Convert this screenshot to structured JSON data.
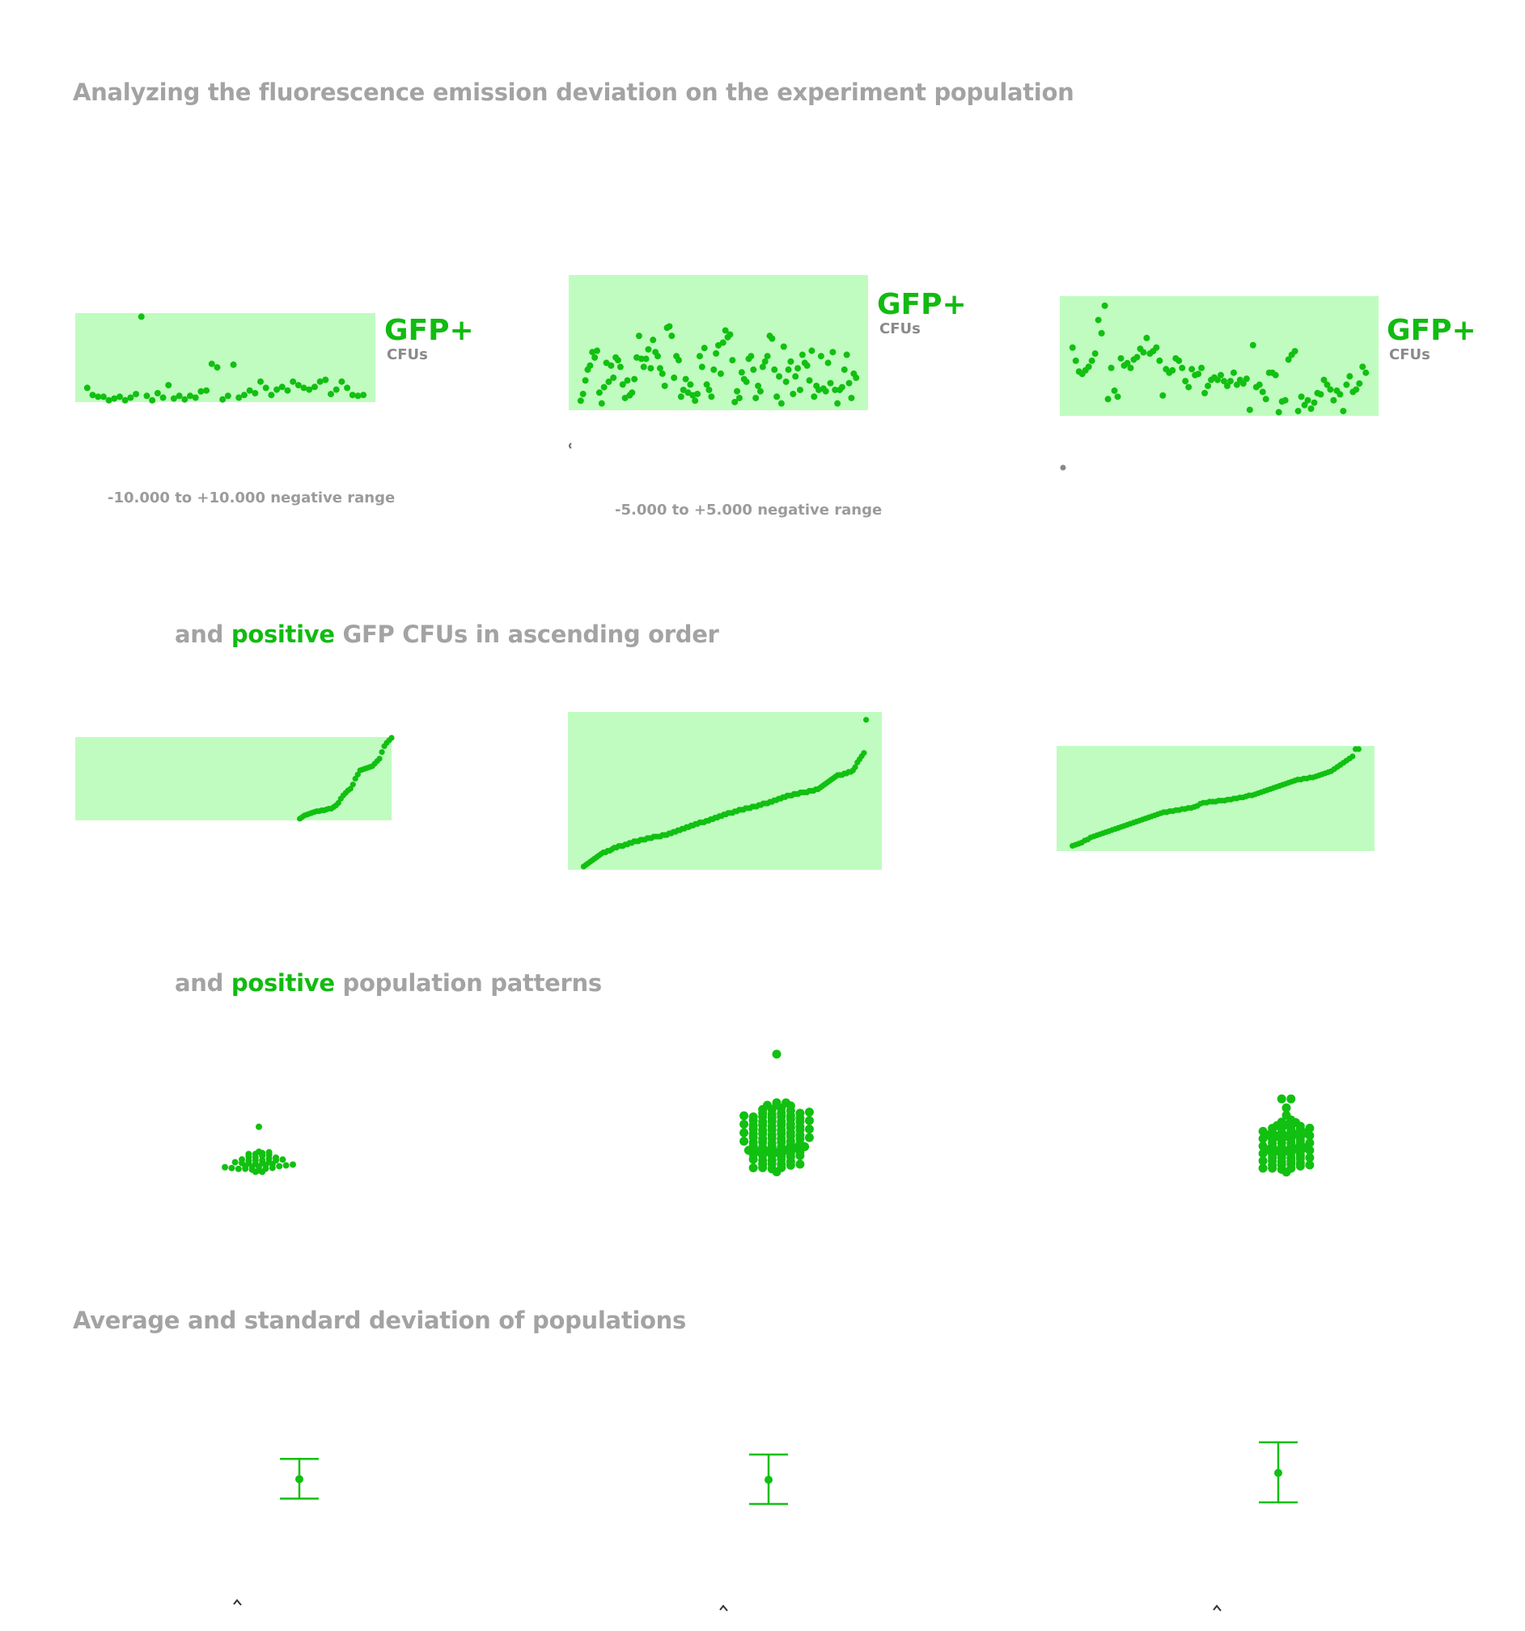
{
  "headings": {
    "h1": "Analyzing the fluorescence emission deviation on the experiment population",
    "h2_pre": "and ",
    "h2_hl": "positive",
    "h2_post": " GFP CFUs in ascending order",
    "h3_pre": "and ",
    "h3_hl": "positive",
    "h3_post": " population patterns",
    "h4": "Average and standard deviation of populations"
  },
  "captions": {
    "c1": "-10.000 to +10.000 negative range",
    "c2": "-5.000 to +5.000 negative range"
  },
  "colors": {
    "point": "#11c011",
    "panel": "#c0fcc0",
    "heading": "#a3a3a3",
    "highlight": "#11bb11",
    "caption_gray": "#9b9b9b"
  },
  "chart_data": [
    {
      "type": "scatter",
      "row": "deviation",
      "panel": 1,
      "label_main": "GFP+",
      "label_sub": "CFUs",
      "ylim": [
        0,
        1
      ],
      "values": [
        0.16,
        0.08,
        0.06,
        0.06,
        0.02,
        0.04,
        0.06,
        0.02,
        0.05,
        0.09,
        0.96,
        0.07,
        0.02,
        0.1,
        0.05,
        0.19,
        0.04,
        0.07,
        0.03,
        0.07,
        0.05,
        0.12,
        0.13,
        0.43,
        0.39,
        0.03,
        0.07,
        0.42,
        0.05,
        0.08,
        0.13,
        0.1,
        0.23,
        0.16,
        0.08,
        0.14,
        0.17,
        0.13,
        0.23,
        0.19,
        0.16,
        0.14,
        0.17,
        0.23,
        0.25,
        0.09,
        0.14,
        0.23,
        0.16,
        0.08,
        0.07,
        0.08
      ]
    },
    {
      "type": "scatter",
      "row": "deviation",
      "panel": 2,
      "label_main": "GFP+",
      "label_sub": "CFUs",
      "ylim": [
        0,
        1
      ],
      "values": [
        0.07,
        0.12,
        0.22,
        0.3,
        0.33,
        0.43,
        0.39,
        0.44,
        0.13,
        0.05,
        0.17,
        0.35,
        0.21,
        0.33,
        0.24,
        0.39,
        0.37,
        0.32,
        0.19,
        0.09,
        0.22,
        0.11,
        0.13,
        0.23,
        0.39,
        0.55,
        0.38,
        0.32,
        0.38,
        0.45,
        0.31,
        0.52,
        0.43,
        0.4,
        0.31,
        0.27,
        0.18,
        0.61,
        0.62,
        0.55,
        0.24,
        0.4,
        0.37,
        0.1,
        0.15,
        0.23,
        0.13,
        0.19,
        0.11,
        0.07,
        0.12,
        0.4,
        0.32,
        0.46,
        0.19,
        0.15,
        0.1,
        0.3,
        0.42,
        0.48,
        0.27,
        0.5,
        0.59,
        0.54,
        0.56,
        0.37,
        0.06,
        0.14,
        0.09,
        0.28,
        0.23,
        0.21,
        0.38,
        0.4,
        0.3,
        0.09,
        0.18,
        0.14,
        0.32,
        0.36,
        0.4,
        0.55,
        0.53,
        0.3,
        0.1,
        0.25,
        0.05,
        0.47,
        0.21,
        0.3,
        0.36,
        0.12,
        0.25,
        0.31,
        0.15,
        0.41,
        0.35,
        0.33,
        0.22,
        0.44,
        0.1,
        0.18,
        0.15,
        0.4,
        0.16,
        0.14,
        0.35,
        0.2,
        0.43,
        0.15,
        0.05,
        0.15,
        0.17,
        0.3,
        0.41,
        0.2,
        0.09,
        0.27,
        0.24
      ]
    },
    {
      "type": "scatter",
      "row": "deviation",
      "panel": 3,
      "label_main": "GFP+",
      "label_sub": "CFUs",
      "ylim": [
        0,
        1
      ],
      "values": [
        0.57,
        0.46,
        0.37,
        0.35,
        0.38,
        0.41,
        0.46,
        0.52,
        0.8,
        0.69,
        0.92,
        0.14,
        0.4,
        0.21,
        0.16,
        0.48,
        0.42,
        0.44,
        0.4,
        0.47,
        0.49,
        0.56,
        0.53,
        0.65,
        0.52,
        0.54,
        0.57,
        0.46,
        0.17,
        0.39,
        0.36,
        0.38,
        0.48,
        0.46,
        0.4,
        0.29,
        0.24,
        0.39,
        0.34,
        0.35,
        0.4,
        0.19,
        0.25,
        0.3,
        0.32,
        0.3,
        0.34,
        0.29,
        0.25,
        0.29,
        0.36,
        0.26,
        0.3,
        0.27,
        0.31,
        0.05,
        0.59,
        0.24,
        0.26,
        0.2,
        0.14,
        0.36,
        0.36,
        0.34,
        0.03,
        0.12,
        0.13,
        0.47,
        0.51,
        0.54,
        0.04,
        0.16,
        0.09,
        0.13,
        0.06,
        0.11,
        0.19,
        0.18,
        0.3,
        0.26,
        0.22,
        0.13,
        0.21,
        0.18,
        0.04,
        0.26,
        0.33,
        0.2,
        0.22,
        0.27,
        0.41,
        0.36
      ]
    },
    {
      "type": "scatter",
      "row": "ascending",
      "panel": 1,
      "ylim": [
        0,
        1
      ],
      "values": [
        0.02,
        0.04,
        0.06,
        0.07,
        0.08,
        0.09,
        0.1,
        0.11,
        0.11,
        0.12,
        0.12,
        0.13,
        0.14,
        0.14,
        0.16,
        0.18,
        0.21,
        0.26,
        0.3,
        0.33,
        0.36,
        0.38,
        0.43,
        0.5,
        0.55,
        0.6,
        0.61,
        0.62,
        0.63,
        0.64,
        0.65,
        0.68,
        0.71,
        0.74,
        0.82,
        0.89,
        0.93,
        0.96,
        0.99
      ]
    },
    {
      "type": "scatter",
      "row": "ascending",
      "panel": 2,
      "ylim": [
        0,
        1
      ],
      "values": [
        0.02,
        0.03,
        0.04,
        0.05,
        0.06,
        0.07,
        0.08,
        0.09,
        0.1,
        0.11,
        0.11,
        0.12,
        0.12,
        0.13,
        0.14,
        0.14,
        0.15,
        0.15,
        0.15,
        0.16,
        0.16,
        0.17,
        0.17,
        0.18,
        0.18,
        0.18,
        0.19,
        0.19,
        0.19,
        0.2,
        0.2,
        0.2,
        0.21,
        0.21,
        0.21,
        0.21,
        0.22,
        0.22,
        0.22,
        0.23,
        0.23,
        0.24,
        0.24,
        0.25,
        0.25,
        0.26,
        0.26,
        0.27,
        0.27,
        0.28,
        0.28,
        0.29,
        0.29,
        0.3,
        0.3,
        0.3,
        0.31,
        0.31,
        0.32,
        0.32,
        0.33,
        0.33,
        0.34,
        0.34,
        0.35,
        0.35,
        0.36,
        0.36,
        0.36,
        0.37,
        0.37,
        0.38,
        0.38,
        0.38,
        0.39,
        0.39,
        0.39,
        0.4,
        0.4,
        0.4,
        0.41,
        0.41,
        0.42,
        0.42,
        0.42,
        0.43,
        0.43,
        0.44,
        0.44,
        0.45,
        0.45,
        0.46,
        0.46,
        0.47,
        0.47,
        0.47,
        0.48,
        0.48,
        0.48,
        0.49,
        0.49,
        0.49,
        0.49,
        0.5,
        0.5,
        0.5,
        0.51,
        0.51,
        0.52,
        0.53,
        0.54,
        0.55,
        0.56,
        0.57,
        0.58,
        0.59,
        0.6,
        0.6,
        0.6,
        0.61,
        0.61,
        0.62,
        0.62,
        0.63,
        0.65,
        0.68,
        0.7,
        0.72,
        0.74,
        0.95
      ]
    },
    {
      "type": "scatter",
      "row": "ascending",
      "panel": 3,
      "ylim": [
        0,
        1
      ],
      "values": [
        0.05,
        0.06,
        0.07,
        0.08,
        0.1,
        0.11,
        0.13,
        0.14,
        0.15,
        0.16,
        0.17,
        0.18,
        0.19,
        0.2,
        0.21,
        0.22,
        0.23,
        0.24,
        0.25,
        0.26,
        0.27,
        0.28,
        0.29,
        0.3,
        0.31,
        0.32,
        0.33,
        0.34,
        0.35,
        0.36,
        0.37,
        0.37,
        0.38,
        0.38,
        0.39,
        0.39,
        0.4,
        0.4,
        0.41,
        0.41,
        0.42,
        0.43,
        0.45,
        0.46,
        0.46,
        0.47,
        0.47,
        0.47,
        0.48,
        0.48,
        0.48,
        0.49,
        0.49,
        0.5,
        0.5,
        0.51,
        0.51,
        0.52,
        0.53,
        0.53,
        0.54,
        0.55,
        0.56,
        0.57,
        0.58,
        0.59,
        0.6,
        0.61,
        0.62,
        0.63,
        0.64,
        0.65,
        0.66,
        0.67,
        0.68,
        0.68,
        0.69,
        0.69,
        0.7,
        0.7,
        0.71,
        0.72,
        0.73,
        0.74,
        0.75,
        0.76,
        0.78,
        0.8,
        0.82,
        0.84,
        0.86,
        0.88,
        0.9,
        0.97,
        0.97
      ]
    },
    {
      "type": "scatter",
      "row": "pattern",
      "panel": 1,
      "subtype": "beeswarm",
      "ylim": [
        0,
        1
      ],
      "values": [
        0.01,
        0.01,
        0.02,
        0.02,
        0.02,
        0.03,
        0.03,
        0.03,
        0.04,
        0.04,
        0.05,
        0.05,
        0.05,
        0.06,
        0.06,
        0.07,
        0.08,
        0.08,
        0.09,
        0.09,
        0.1,
        0.1,
        0.11,
        0.11,
        0.12,
        0.12,
        0.13,
        0.13,
        0.14,
        0.14,
        0.15,
        0.15,
        0.17,
        0.17,
        0.19,
        0.19,
        0.2,
        0.21,
        0.22,
        0.22,
        0.24,
        0.52
      ]
    },
    {
      "type": "scatter",
      "row": "pattern",
      "panel": 2,
      "subtype": "beeswarm",
      "ylim": [
        0,
        1
      ],
      "values": [
        0.01,
        0.02,
        0.03,
        0.03,
        0.04,
        0.05,
        0.05,
        0.06,
        0.07,
        0.07,
        0.08,
        0.09,
        0.09,
        0.1,
        0.11,
        0.12,
        0.12,
        0.13,
        0.13,
        0.14,
        0.14,
        0.15,
        0.15,
        0.16,
        0.16,
        0.17,
        0.17,
        0.18,
        0.19,
        0.19,
        0.2,
        0.2,
        0.21,
        0.21,
        0.22,
        0.22,
        0.23,
        0.23,
        0.24,
        0.24,
        0.25,
        0.25,
        0.26,
        0.26,
        0.27,
        0.27,
        0.28,
        0.28,
        0.29,
        0.29,
        0.3,
        0.3,
        0.31,
        0.31,
        0.32,
        0.32,
        0.33,
        0.33,
        0.34,
        0.34,
        0.35,
        0.35,
        0.36,
        0.36,
        0.37,
        0.37,
        0.38,
        0.38,
        0.39,
        0.39,
        0.4,
        0.4,
        0.41,
        0.41,
        0.42,
        0.42,
        0.43,
        0.43,
        0.44,
        0.44,
        0.45,
        0.45,
        0.46,
        0.46,
        0.47,
        0.47,
        0.48,
        0.48,
        0.49,
        0.5,
        0.51,
        0.52,
        0.53,
        0.54,
        0.55,
        0.56,
        0.57,
        0.58,
        0.98
      ]
    },
    {
      "type": "scatter",
      "row": "pattern",
      "panel": 3,
      "subtype": "beeswarm",
      "ylim": [
        0,
        1
      ],
      "values": [
        0.01,
        0.02,
        0.03,
        0.03,
        0.04,
        0.05,
        0.05,
        0.06,
        0.07,
        0.08,
        0.08,
        0.09,
        0.1,
        0.1,
        0.11,
        0.12,
        0.12,
        0.13,
        0.14,
        0.14,
        0.15,
        0.16,
        0.16,
        0.17,
        0.18,
        0.18,
        0.19,
        0.2,
        0.2,
        0.21,
        0.22,
        0.22,
        0.23,
        0.24,
        0.24,
        0.25,
        0.26,
        0.26,
        0.27,
        0.28,
        0.28,
        0.29,
        0.3,
        0.3,
        0.31,
        0.32,
        0.32,
        0.33,
        0.34,
        0.34,
        0.35,
        0.36,
        0.36,
        0.37,
        0.38,
        0.38,
        0.39,
        0.4,
        0.4,
        0.41,
        0.42,
        0.42,
        0.43,
        0.44,
        0.46,
        0.47,
        0.48,
        0.5,
        0.55,
        0.62,
        0.7,
        0.7
      ]
    },
    {
      "type": "errorbar",
      "row": "stats",
      "panel": 1,
      "ylim": [
        0,
        1
      ],
      "mean": 0.43,
      "low": 0.23,
      "high": 0.64
    },
    {
      "type": "errorbar",
      "row": "stats",
      "panel": 2,
      "ylim": [
        0,
        1
      ],
      "mean": 0.43,
      "low": 0.2,
      "high": 0.67
    },
    {
      "type": "errorbar",
      "row": "stats",
      "panel": 3,
      "ylim": [
        0,
        1
      ],
      "mean": 0.46,
      "low": 0.2,
      "high": 0.73
    }
  ]
}
